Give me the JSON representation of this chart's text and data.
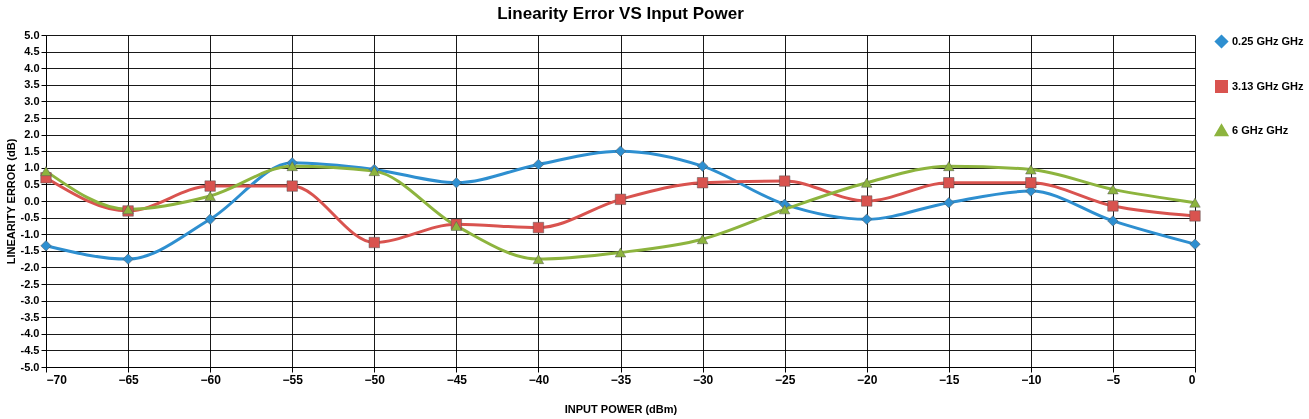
{
  "chart_data": {
    "type": "line",
    "title": "Linearity Error VS Input Power",
    "xlabel": "INPUT POWER (dBm)",
    "ylabel": "LINEARITY ERROR (dB)",
    "x": [
      -70,
      -65,
      -60,
      -55,
      -50,
      -45,
      -40,
      -35,
      -30,
      -25,
      -20,
      -15,
      -10,
      -5,
      0
    ],
    "series": [
      {
        "name": "0.25 GHz GHz",
        "color": "#2e8fd0",
        "marker": "diamond",
        "values": [
          -1.35,
          -1.75,
          -0.55,
          1.15,
          0.95,
          0.55,
          1.1,
          1.5,
          1.05,
          -0.1,
          -0.55,
          -0.05,
          0.3,
          -0.6,
          -1.3
        ]
      },
      {
        "name": "3.13 GHz GHz",
        "color": "#d9534f",
        "marker": "square",
        "values": [
          0.7,
          -0.3,
          0.45,
          0.45,
          -1.25,
          -0.7,
          -0.8,
          0.05,
          0.55,
          0.6,
          0.0,
          0.55,
          0.55,
          -0.15,
          -0.45
        ]
      },
      {
        "name": "6 GHz GHz",
        "color": "#8db43e",
        "marker": "triangle",
        "values": [
          0.9,
          -0.25,
          0.15,
          1.05,
          0.9,
          -0.75,
          -1.75,
          -1.55,
          -1.15,
          -0.25,
          0.55,
          1.05,
          0.95,
          0.35,
          -0.05
        ]
      }
    ],
    "xlim": [
      -70,
      0
    ],
    "xticks": [
      -70,
      -65,
      -60,
      -55,
      -50,
      -45,
      -40,
      -35,
      -30,
      -25,
      -20,
      -15,
      -10,
      -5,
      0
    ],
    "ylim": [
      -5,
      5
    ],
    "yticks": [
      {
        "value": -5,
        "label": "-5.0"
      },
      {
        "value": -4.5,
        "label": "-4.5"
      },
      {
        "value": -4,
        "label": "-4.0"
      },
      {
        "value": -3.5,
        "label": "-3.5"
      },
      {
        "value": -3,
        "label": "-3.0"
      },
      {
        "value": -2.5,
        "label": "-2.5"
      },
      {
        "value": -2,
        "label": "-2.0"
      },
      {
        "value": -1.5,
        "label": "-1.5"
      },
      {
        "value": -1,
        "label": "-1.0"
      },
      {
        "value": -0.5,
        "label": "-0.5"
      },
      {
        "value": 0,
        "label": "0.0"
      },
      {
        "value": 0.5,
        "label": "0.5"
      },
      {
        "value": 1,
        "label": "1.0"
      },
      {
        "value": 1.5,
        "label": "1.5"
      },
      {
        "value": 2,
        "label": "2.0"
      },
      {
        "value": 2.5,
        "label": "2.5"
      },
      {
        "value": 3,
        "label": "3.0"
      },
      {
        "value": 3.5,
        "label": "3.5"
      },
      {
        "value": 4,
        "label": "4.0"
      },
      {
        "value": 4.5,
        "label": "4.5"
      },
      {
        "value": 5,
        "label": "5.0"
      }
    ],
    "grid": true,
    "legend": "right",
    "line_style": "solid"
  }
}
